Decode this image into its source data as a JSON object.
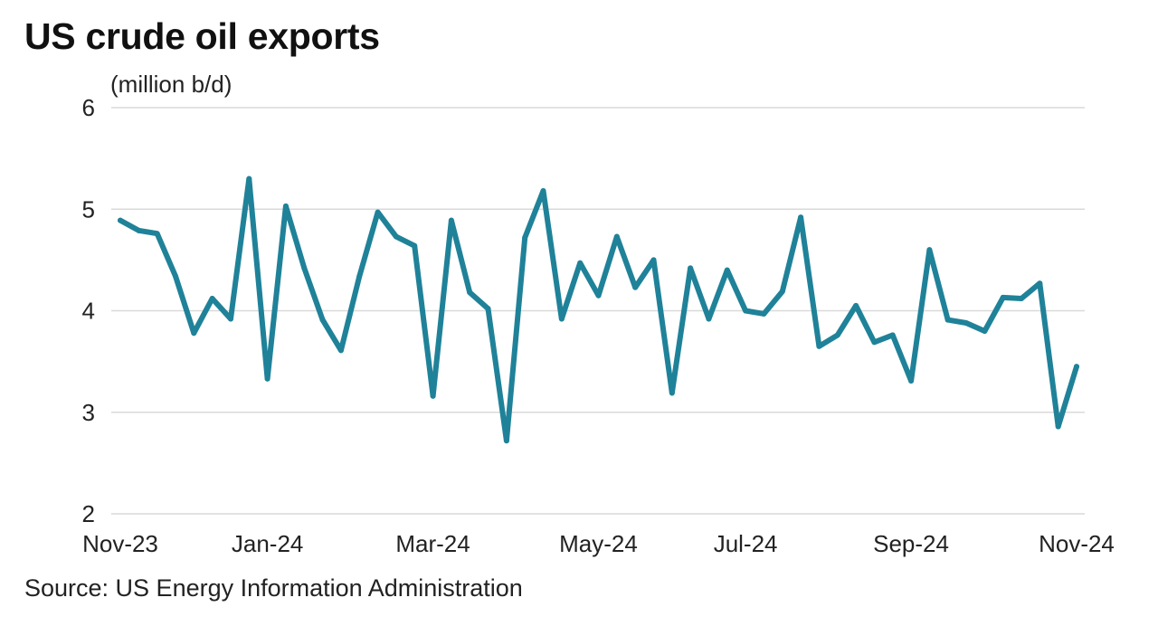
{
  "chart_data": {
    "type": "line",
    "title": "US crude oil exports",
    "ylabel": "(million b/d)",
    "xlabel": "",
    "source": "Source: US Energy Information Administration",
    "ylim": [
      2,
      6
    ],
    "yticks": [
      "6",
      "5",
      "4",
      "3",
      "2"
    ],
    "ytick_values": [
      6,
      5,
      4,
      3,
      2
    ],
    "xticks": [
      "Nov-23",
      "Jan-24",
      "Mar-24",
      "May-24",
      "Jul-24",
      "Sep-24",
      "Nov-24"
    ],
    "xtick_index": [
      0,
      8,
      17,
      26,
      34,
      43,
      52
    ],
    "grid": true,
    "legend": "none",
    "line_color": "#1F8299",
    "grid_color": "#D9D9D9",
    "series": [
      {
        "name": "US crude oil exports",
        "values": [
          4.89,
          4.79,
          4.76,
          4.34,
          3.78,
          4.12,
          3.92,
          5.3,
          3.33,
          5.03,
          4.42,
          3.91,
          3.61,
          4.34,
          4.97,
          4.73,
          4.64,
          3.16,
          4.89,
          4.18,
          4.02,
          2.72,
          4.72,
          5.18,
          3.92,
          4.47,
          4.15,
          4.73,
          4.23,
          4.5,
          3.19,
          4.42,
          3.92,
          4.4,
          4.0,
          3.97,
          4.19,
          4.92,
          3.65,
          3.76,
          4.05,
          3.69,
          3.76,
          3.31,
          4.6,
          3.91,
          3.88,
          3.8,
          4.13,
          4.12,
          4.27,
          2.86,
          3.45
        ]
      }
    ]
  }
}
